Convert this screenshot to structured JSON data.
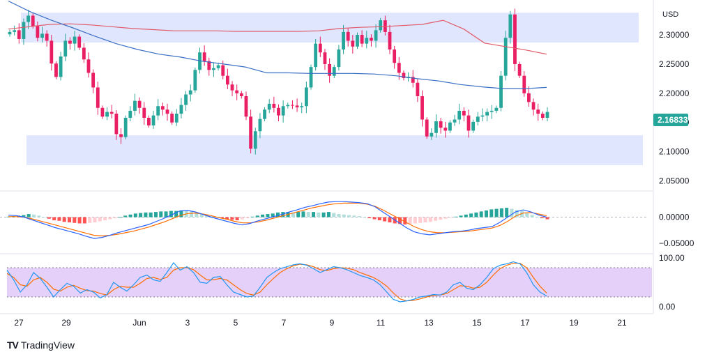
{
  "currency": "USD",
  "last_price": "2.16833",
  "brand": {
    "mark": "TV",
    "name": "TradingView"
  },
  "colors": {
    "up": "#26a69a",
    "down": "#e91e63",
    "zone": "#dbe2fd",
    "ma_slow": "#e05b6a",
    "ma_fast": "#3a6fc4",
    "macd_line": "#2962ff",
    "signal_line": "#ff6d00",
    "hist_up_strong": "#26a69a",
    "hist_up_weak": "#b2dfdb",
    "hist_down_strong": "#ff5252",
    "hist_down_weak": "#ffcdd2",
    "stoch_k": "#2196f3",
    "stoch_d": "#ff6d00",
    "stoch_band": "#e1c8f8"
  },
  "chart_data": [
    {
      "type": "candlestick",
      "title": "",
      "x_ticks": [
        "27",
        "29",
        "Jun",
        "3",
        "5",
        "7",
        "9",
        "11",
        "13",
        "15",
        "17",
        "19",
        "21"
      ],
      "y_ticks": [
        "2.30000",
        "2.25000",
        "2.20000",
        "2.15000",
        "2.10000",
        "2.05000"
      ],
      "ylim": [
        2.035,
        2.355
      ],
      "support_zone": [
        2.077,
        2.128
      ],
      "resistance_zone": [
        2.287,
        2.338
      ],
      "closes": [
        2.305,
        2.308,
        2.293,
        2.322,
        2.333,
        2.315,
        2.295,
        2.302,
        2.29,
        2.251,
        2.228,
        2.263,
        2.29,
        2.285,
        2.297,
        2.278,
        2.258,
        2.235,
        2.21,
        2.175,
        2.16,
        2.168,
        2.165,
        2.13,
        2.125,
        2.158,
        2.17,
        2.187,
        2.175,
        2.158,
        2.145,
        2.162,
        2.178,
        2.172,
        2.165,
        2.15,
        2.165,
        2.18,
        2.198,
        2.205,
        2.24,
        2.27,
        2.255,
        2.24,
        2.243,
        2.248,
        2.23,
        2.215,
        2.205,
        2.2,
        2.195,
        2.16,
        2.105,
        2.135,
        2.156,
        2.172,
        2.182,
        2.175,
        2.162,
        2.178,
        2.18,
        2.179,
        2.176,
        2.178,
        2.21,
        2.245,
        2.285,
        2.27,
        2.25,
        2.23,
        2.245,
        2.275,
        2.305,
        2.29,
        2.28,
        2.3,
        2.285,
        2.295,
        2.29,
        2.308,
        2.325,
        2.305,
        2.275,
        2.252,
        2.235,
        2.226,
        2.228,
        2.218,
        2.195,
        2.155,
        2.126,
        2.132,
        2.152,
        2.141,
        2.136,
        2.15,
        2.155,
        2.17,
        2.162,
        2.136,
        2.151,
        2.16,
        2.162,
        2.168,
        2.17,
        2.175,
        2.23,
        2.295,
        2.335,
        2.25,
        2.23,
        2.2,
        2.185,
        2.172,
        2.165,
        2.158,
        2.168
      ],
      "ma_slow": [
        2.31,
        2.314,
        2.318,
        2.319,
        2.317,
        2.314,
        2.311,
        2.309,
        2.307,
        2.307,
        2.307,
        2.306,
        2.306,
        2.306,
        2.306,
        2.307,
        2.311,
        2.313,
        2.314,
        2.316,
        2.318,
        2.325,
        2.31,
        2.286,
        2.28,
        2.274,
        2.267
      ],
      "ma_fast": [
        2.358,
        2.34,
        2.325,
        2.312,
        2.298,
        2.285,
        2.275,
        2.267,
        2.262,
        2.255,
        2.25,
        2.245,
        2.235,
        2.235,
        2.234,
        2.234,
        2.234,
        2.233,
        2.23,
        2.225,
        2.221,
        2.215,
        2.211,
        2.208,
        2.208,
        2.21
      ]
    },
    {
      "type": "macd",
      "y_ticks": [
        "0.00000",
        "−0.05000"
      ],
      "ylim": [
        -0.065,
        0.045
      ],
      "histogram": [
        0.001,
        0.002,
        0.003,
        0.004,
        0.006,
        0.005,
        0.003,
        0.0,
        -0.003,
        -0.006,
        -0.007,
        -0.009,
        -0.01,
        -0.011,
        -0.012,
        -0.012,
        -0.011,
        -0.01,
        -0.008,
        -0.006,
        -0.004,
        -0.002,
        0.0,
        0.003,
        0.005,
        0.007,
        0.008,
        0.009,
        0.009,
        0.01,
        0.011,
        0.011,
        0.012,
        0.012,
        0.013,
        0.012,
        0.011,
        0.009,
        0.006,
        0.004,
        0.002,
        0.0,
        -0.002,
        -0.004,
        -0.005,
        -0.006,
        -0.004,
        -0.002,
        0.001,
        0.003,
        0.005,
        0.006,
        0.007,
        0.009,
        0.01,
        0.01,
        0.009,
        0.01,
        0.011,
        0.01,
        0.01,
        0.009,
        0.009,
        0.01,
        0.008,
        0.006,
        0.005,
        0.004,
        0.003,
        0.002,
        0.0,
        -0.002,
        -0.004,
        -0.006,
        -0.008,
        -0.01,
        -0.012,
        -0.013,
        -0.014,
        -0.013,
        -0.012,
        -0.011,
        -0.01,
        -0.009,
        -0.007,
        -0.005,
        -0.003,
        -0.001,
        0.001,
        0.003,
        0.005,
        0.007,
        0.009,
        0.011,
        0.013,
        0.015,
        0.016,
        0.017,
        0.018,
        0.016,
        0.014,
        0.012,
        0.008,
        0.004,
        0.001,
        -0.002,
        -0.004
      ],
      "macd_line": [
        0.004,
        0.003,
        0.0,
        -0.005,
        -0.01,
        -0.015,
        -0.02,
        -0.024,
        -0.028,
        -0.032,
        -0.037,
        -0.041,
        -0.039,
        -0.035,
        -0.03,
        -0.026,
        -0.022,
        -0.018,
        -0.014,
        -0.008,
        -0.002,
        0.005,
        0.012,
        0.013,
        0.01,
        0.005,
        0.0,
        -0.004,
        -0.008,
        -0.012,
        -0.015,
        -0.012,
        -0.007,
        -0.003,
        0.001,
        0.005,
        0.01,
        0.014,
        0.019,
        0.022,
        0.026,
        0.029,
        0.03,
        0.03,
        0.029,
        0.028,
        0.026,
        0.02,
        0.01,
        0.0,
        -0.01,
        -0.02,
        -0.028,
        -0.032,
        -0.034,
        -0.032,
        -0.03,
        -0.028,
        -0.027,
        -0.025,
        -0.022,
        -0.02,
        -0.018,
        -0.01,
        0.0,
        0.01,
        0.014,
        0.01,
        0.004,
        0.0
      ],
      "signal_line": [
        0.001,
        0.001,
        0.0,
        -0.003,
        -0.007,
        -0.011,
        -0.015,
        -0.019,
        -0.023,
        -0.027,
        -0.031,
        -0.035,
        -0.036,
        -0.035,
        -0.033,
        -0.03,
        -0.027,
        -0.023,
        -0.019,
        -0.014,
        -0.009,
        -0.003,
        0.003,
        0.007,
        0.008,
        0.006,
        0.003,
        -0.001,
        -0.004,
        -0.008,
        -0.011,
        -0.011,
        -0.009,
        -0.006,
        -0.002,
        0.002,
        0.006,
        0.01,
        0.014,
        0.018,
        0.021,
        0.024,
        0.026,
        0.027,
        0.027,
        0.027,
        0.025,
        0.021,
        0.014,
        0.006,
        -0.002,
        -0.01,
        -0.018,
        -0.024,
        -0.028,
        -0.03,
        -0.03,
        -0.029,
        -0.028,
        -0.027,
        -0.025,
        -0.023,
        -0.021,
        -0.016,
        -0.008,
        0.002,
        0.008,
        0.009,
        0.006,
        0.003
      ]
    },
    {
      "type": "stochastic",
      "y_ticks": [
        "100.00",
        "0.00"
      ],
      "ylim": [
        0,
        100
      ],
      "band": [
        20,
        80
      ],
      "k_line": [
        75,
        55,
        30,
        45,
        70,
        58,
        40,
        20,
        35,
        48,
        42,
        28,
        35,
        30,
        18,
        25,
        50,
        40,
        32,
        45,
        60,
        65,
        55,
        52,
        70,
        90,
        75,
        82,
        70,
        50,
        48,
        60,
        62,
        45,
        30,
        25,
        20,
        22,
        40,
        60,
        70,
        78,
        82,
        86,
        88,
        85,
        78,
        70,
        76,
        82,
        80,
        76,
        70,
        64,
        60,
        55,
        45,
        30,
        15,
        10,
        12,
        15,
        20,
        22,
        25,
        24,
        30,
        45,
        50,
        38,
        35,
        45,
        60,
        78,
        85,
        88,
        92,
        88,
        70,
        45,
        30,
        22
      ],
      "d_line": [
        68,
        60,
        45,
        42,
        55,
        60,
        50,
        36,
        32,
        40,
        44,
        38,
        33,
        32,
        27,
        24,
        35,
        42,
        40,
        40,
        48,
        58,
        60,
        56,
        60,
        75,
        80,
        80,
        76,
        65,
        55,
        55,
        58,
        55,
        45,
        35,
        27,
        24,
        30,
        45,
        58,
        70,
        78,
        84,
        87,
        86,
        82,
        76,
        74,
        78,
        80,
        79,
        76,
        70,
        65,
        60,
        52,
        42,
        28,
        16,
        12,
        13,
        16,
        20,
        23,
        24,
        27,
        35,
        43,
        42,
        38,
        40,
        50,
        65,
        78,
        85,
        89,
        89,
        80,
        60,
        42,
        28
      ]
    }
  ]
}
